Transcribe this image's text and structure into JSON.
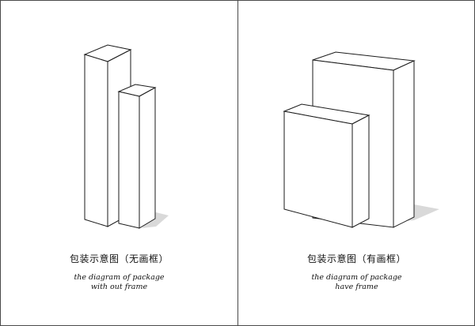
{
  "panels": {
    "left": {
      "title_zh": "包装示意图（无画框）",
      "caption_en_line1": "the diagram of package",
      "caption_en_line2": "with out frame"
    },
    "right": {
      "title_zh": "包装示意图（有画框）",
      "caption_en_line1": "the diagram of package",
      "caption_en_line2": "have frame"
    }
  },
  "colors": {
    "line": "#1a1a1a",
    "face": "#ffffff",
    "shadow": "#d9d9d9",
    "border": "#4a4a4a"
  }
}
